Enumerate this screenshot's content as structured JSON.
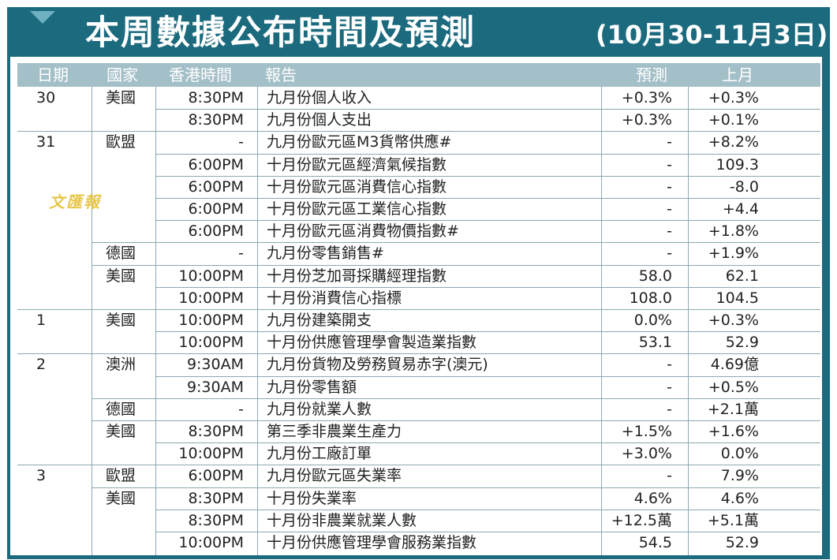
{
  "header": {
    "title": "本周數據公布時間及預測",
    "date_range": "(10月30-11月3日)"
  },
  "columns": {
    "date": "日期",
    "country": "國家",
    "time": "香港時間",
    "report": "報告",
    "forecast": "預測",
    "previous": "上月"
  },
  "watermark": "文匯報",
  "rows": [
    {
      "date": "30",
      "country": "美國",
      "time": "8:30PM",
      "report": "九月份個人收入",
      "forecast": "+0.3%",
      "previous": "+0.3%"
    },
    {
      "date": "",
      "country": "",
      "time": "8:30PM",
      "report": "九月份個人支出",
      "forecast": "+0.3%",
      "previous": "+0.1%"
    },
    {
      "date": "31",
      "country": "歐盟",
      "time": "-",
      "report": "九月份歐元區M3貨幣供應#",
      "forecast": "-",
      "previous": "+8.2%"
    },
    {
      "date": "",
      "country": "",
      "time": "6:00PM",
      "report": "十月份歐元區經濟氣候指數",
      "forecast": "-",
      "previous": "109.3"
    },
    {
      "date": "",
      "country": "",
      "time": "6:00PM",
      "report": "十月份歐元區消費信心指數",
      "forecast": "-",
      "previous": "-8.0"
    },
    {
      "date": "",
      "country": "",
      "time": "6:00PM",
      "report": "十月份歐元區工業信心指數",
      "forecast": "-",
      "previous": "+4.4"
    },
    {
      "date": "",
      "country": "",
      "time": "6:00PM",
      "report": "十月份歐元區消費物價指數#",
      "forecast": "-",
      "previous": "+1.8%"
    },
    {
      "date": "",
      "country": "德國",
      "time": "-",
      "report": "九月份零售銷售#",
      "forecast": "-",
      "previous": "+1.9%"
    },
    {
      "date": "",
      "country": "美國",
      "time": "10:00PM",
      "report": "十月份芝加哥採購經理指數",
      "forecast": "58.0",
      "previous": "62.1"
    },
    {
      "date": "",
      "country": "",
      "time": "10:00PM",
      "report": "十月份消費信心指標",
      "forecast": "108.0",
      "previous": "104.5"
    },
    {
      "date": "1",
      "country": "美國",
      "time": "10:00PM",
      "report": "九月份建築開支",
      "forecast": "0.0%",
      "previous": "+0.3%"
    },
    {
      "date": "",
      "country": "",
      "time": "10:00PM",
      "report": "十月份供應管理學會製造業指數",
      "forecast": "53.1",
      "previous": "52.9"
    },
    {
      "date": "2",
      "country": "澳洲",
      "time": "9:30AM",
      "report": "九月份貨物及勞務貿易赤字(澳元)",
      "forecast": "-",
      "previous": "4.69億"
    },
    {
      "date": "",
      "country": "",
      "time": "9:30AM",
      "report": "九月份零售額",
      "forecast": "-",
      "previous": "+0.5%"
    },
    {
      "date": "",
      "country": "德國",
      "time": "-",
      "report": "九月份就業人數",
      "forecast": "-",
      "previous": "+2.1萬"
    },
    {
      "date": "",
      "country": "美國",
      "time": "8:30PM",
      "report": "第三季非農業生產力",
      "forecast": "+1.5%",
      "previous": "+1.6%"
    },
    {
      "date": "",
      "country": "",
      "time": "10:00PM",
      "report": "九月份工廠訂單",
      "forecast": "+3.0%",
      "previous": "0.0%"
    },
    {
      "date": "3",
      "country": "歐盟",
      "time": "6:00PM",
      "report": "九月份歐元區失業率",
      "forecast": "-",
      "previous": "7.9%"
    },
    {
      "date": "",
      "country": "美國",
      "time": "8:30PM",
      "report": "十月份失業率",
      "forecast": "4.6%",
      "previous": "4.6%"
    },
    {
      "date": "",
      "country": "",
      "time": "8:30PM",
      "report": "十月份非農業就業人數",
      "forecast": "+12.5萬",
      "previous": "+5.1萬"
    },
    {
      "date": "",
      "country": "",
      "time": "10:00PM",
      "report": "十月份供應管理學會服務業指數",
      "forecast": "54.5",
      "previous": "52.9"
    }
  ]
}
